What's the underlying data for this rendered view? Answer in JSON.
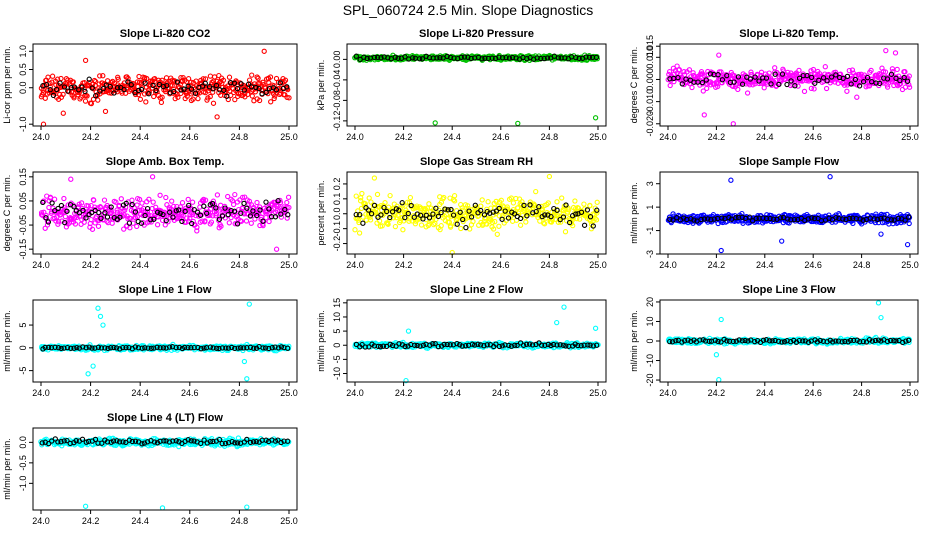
{
  "figure_title": "SPL_060724  2.5 Min. Slope Diagnostics",
  "colors": {
    "co2": "#ff0000",
    "pressure": "#00c000",
    "temperature": "#ff00ff",
    "box_temp": "#ff00ff",
    "rh": "#ffff00",
    "sample_flow": "#0000ff",
    "line_flow": "#00ffff",
    "reference": "#000000"
  },
  "chart_data": [
    {
      "type": "scatter",
      "title": "Slope Li-820 CO2",
      "ylabel": "Li-cor ppm per min.",
      "xlim": [
        24.0,
        25.0
      ],
      "ylim": [
        -1.05,
        1.2
      ],
      "x_ticks": [
        "24.0",
        "24.2",
        "24.4",
        "24.6",
        "24.8",
        "25.0"
      ],
      "y_ticks": [
        {
          "v": -1.0,
          "l": "-1.0"
        },
        {
          "v": 0.0,
          "l": "0.0"
        },
        {
          "v": 0.5,
          "l": "0.5"
        },
        {
          "v": 1.0,
          "l": "1.0"
        }
      ],
      "series": [
        {
          "name": "Li-820 CO2",
          "color": "#ff0000",
          "center": 0.0,
          "spread": 0.35,
          "n": 420,
          "outliers": [
            [
              24.01,
              -1.0
            ],
            [
              24.09,
              -0.7
            ],
            [
              24.18,
              0.75
            ],
            [
              24.26,
              -0.65
            ],
            [
              24.71,
              -0.8
            ],
            [
              24.9,
              1.0
            ]
          ]
        },
        {
          "name": "reference",
          "color": "#000000",
          "center": 0.0,
          "spread": 0.2,
          "n": 70,
          "outliers": []
        }
      ]
    },
    {
      "type": "scatter",
      "title": "Slope Li-820 Pressure",
      "ylabel": "kPa per min.",
      "xlim": [
        24.0,
        25.0
      ],
      "ylim": [
        -0.13,
        0.03
      ],
      "x_ticks": [
        "24.0",
        "24.2",
        "24.4",
        "24.6",
        "24.8",
        "25.0"
      ],
      "y_ticks": [
        {
          "v": -0.12,
          "l": "-0.12"
        },
        {
          "v": -0.08,
          "l": "-0.08"
        },
        {
          "v": -0.04,
          "l": "-0.04"
        },
        {
          "v": 0.0,
          "l": "0.00"
        }
      ],
      "series": [
        {
          "name": "Li-820 Pressure",
          "color": "#00c000",
          "center": 0.003,
          "spread": 0.004,
          "n": 420,
          "outliers": [
            [
              24.33,
              -0.124
            ],
            [
              24.67,
              -0.125
            ],
            [
              24.99,
              -0.114
            ]
          ]
        },
        {
          "name": "reference",
          "color": "#000000",
          "center": 0.003,
          "spread": 0.003,
          "n": 70,
          "outliers": []
        }
      ]
    },
    {
      "type": "scatter",
      "title": "Slope Li-820 Temp.",
      "ylabel": "degrees C per min.",
      "xlim": [
        24.0,
        25.0
      ],
      "ylim": [
        -0.021,
        0.016
      ],
      "x_ticks": [
        "24.0",
        "24.2",
        "24.4",
        "24.6",
        "24.8",
        "25.0"
      ],
      "y_ticks": [
        {
          "v": -0.02,
          "l": "-0.020"
        },
        {
          "v": -0.01,
          "l": "-0.010"
        },
        {
          "v": 0.0,
          "l": "0.000"
        },
        {
          "v": 0.01,
          "l": "0.010"
        },
        {
          "v": 0.015,
          "l": "0.015"
        }
      ],
      "series": [
        {
          "name": "Li-820 Temp.",
          "color": "#ff00ff",
          "center": 0.0,
          "spread": 0.004,
          "n": 420,
          "outliers": [
            [
              24.15,
              -0.016
            ],
            [
              24.27,
              -0.02
            ],
            [
              24.21,
              0.011
            ],
            [
              24.9,
              0.013
            ],
            [
              24.94,
              0.012
            ],
            [
              24.78,
              -0.008
            ]
          ]
        },
        {
          "name": "reference",
          "color": "#000000",
          "center": 0.0,
          "spread": 0.003,
          "n": 60,
          "outliers": []
        }
      ]
    },
    {
      "type": "scatter",
      "title": "Slope Amb. Box Temp.",
      "ylabel": "degrees C per min.",
      "xlim": [
        24.0,
        25.0
      ],
      "ylim": [
        -0.17,
        0.17
      ],
      "x_ticks": [
        "24.0",
        "24.2",
        "24.4",
        "24.6",
        "24.8",
        "25.0"
      ],
      "y_ticks": [
        {
          "v": -0.15,
          "l": "-0.15"
        },
        {
          "v": -0.05,
          "l": "-0.05"
        },
        {
          "v": 0.05,
          "l": "0.05"
        },
        {
          "v": 0.15,
          "l": "0.15"
        }
      ],
      "series": [
        {
          "name": "Amb. Box Temp.",
          "color": "#ff00ff",
          "center": 0.0,
          "spread": 0.06,
          "n": 420,
          "outliers": [
            [
              24.12,
              0.14
            ],
            [
              24.45,
              0.15
            ],
            [
              24.95,
              -0.15
            ]
          ]
        },
        {
          "name": "reference",
          "color": "#000000",
          "center": 0.0,
          "spread": 0.05,
          "n": 80,
          "outliers": []
        }
      ]
    },
    {
      "type": "scatter",
      "title": "Slope Gas Stream RH",
      "ylabel": "percent per min.",
      "xlim": [
        24.0,
        25.0
      ],
      "ylim": [
        -0.27,
        0.28
      ],
      "x_ticks": [
        "24.0",
        "24.2",
        "24.4",
        "24.6",
        "24.8",
        "25.0"
      ],
      "y_ticks": [
        {
          "v": -0.2,
          "l": "-0.2"
        },
        {
          "v": -0.1,
          "l": "-0.1"
        },
        {
          "v": 0.0,
          "l": "0.0"
        },
        {
          "v": 0.1,
          "l": "0.1"
        },
        {
          "v": 0.2,
          "l": "0.2"
        }
      ],
      "series": [
        {
          "name": "Gas Stream RH",
          "color": "#ffff00",
          "center": 0.0,
          "spread": 0.1,
          "n": 420,
          "outliers": [
            [
              24.08,
              0.24
            ],
            [
              24.4,
              -0.26
            ],
            [
              24.8,
              0.25
            ]
          ]
        },
        {
          "name": "reference",
          "color": "#000000",
          "center": 0.0,
          "spread": 0.07,
          "n": 80,
          "outliers": []
        }
      ]
    },
    {
      "type": "scatter",
      "title": "Slope Sample Flow",
      "ylabel": "ml/min per min.",
      "xlim": [
        24.0,
        25.0
      ],
      "ylim": [
        -3.0,
        4.0
      ],
      "x_ticks": [
        "24.0",
        "24.2",
        "24.4",
        "24.6",
        "24.8",
        "25.0"
      ],
      "y_ticks": [
        {
          "v": -3,
          "l": "-3"
        },
        {
          "v": -1,
          "l": "-1"
        },
        {
          "v": 1,
          "l": "1"
        },
        {
          "v": 3,
          "l": "3"
        }
      ],
      "series": [
        {
          "name": "Sample Flow",
          "color": "#0000ff",
          "center": 0.0,
          "spread": 0.4,
          "n": 420,
          "outliers": [
            [
              24.22,
              -2.7
            ],
            [
              24.26,
              3.3
            ],
            [
              24.67,
              3.6
            ],
            [
              24.47,
              -1.9
            ],
            [
              24.99,
              -2.2
            ],
            [
              24.88,
              -1.3
            ]
          ]
        },
        {
          "name": "reference",
          "color": "#000000",
          "center": 0.0,
          "spread": 0.15,
          "n": 70,
          "outliers": []
        }
      ]
    },
    {
      "type": "scatter",
      "title": "Slope Line 1 Flow",
      "ylabel": "ml/min per min.",
      "xlim": [
        24.0,
        25.0
      ],
      "ylim": [
        -7.5,
        10.5
      ],
      "x_ticks": [
        "24.0",
        "24.2",
        "24.4",
        "24.6",
        "24.8",
        "25.0"
      ],
      "y_ticks": [
        {
          "v": -5,
          "l": "-5"
        },
        {
          "v": 0,
          "l": "0"
        },
        {
          "v": 5,
          "l": "5"
        }
      ],
      "series": [
        {
          "name": "Line 1 Flow",
          "color": "#00ffff",
          "center": 0.0,
          "spread": 0.5,
          "n": 420,
          "outliers": [
            [
              24.23,
              8.7
            ],
            [
              24.24,
              6.9
            ],
            [
              24.19,
              -5.7
            ],
            [
              24.21,
              -4.0
            ],
            [
              24.84,
              9.6
            ],
            [
              24.83,
              -6.8
            ],
            [
              24.82,
              -3.0
            ],
            [
              24.25,
              5.0
            ]
          ]
        },
        {
          "name": "reference",
          "color": "#000000",
          "center": 0.0,
          "spread": 0.2,
          "n": 80,
          "outliers": []
        }
      ]
    },
    {
      "type": "scatter",
      "title": "Slope Line 2 Flow",
      "ylabel": "ml/min per min.",
      "xlim": [
        24.0,
        25.0
      ],
      "ylim": [
        -13,
        16
      ],
      "x_ticks": [
        "24.0",
        "24.2",
        "24.4",
        "24.6",
        "24.8",
        "25.0"
      ],
      "y_ticks": [
        {
          "v": -10,
          "l": "-10"
        },
        {
          "v": -5,
          "l": "-5"
        },
        {
          "v": 0,
          "l": "0"
        },
        {
          "v": 5,
          "l": "5"
        },
        {
          "v": 10,
          "l": "10"
        },
        {
          "v": 15,
          "l": "15"
        }
      ],
      "series": [
        {
          "name": "Line 2 Flow",
          "color": "#00ffff",
          "center": 0.0,
          "spread": 0.8,
          "n": 420,
          "outliers": [
            [
              24.21,
              -12.5
            ],
            [
              24.22,
              5.0
            ],
            [
              24.83,
              8.0
            ],
            [
              24.86,
              13.5
            ],
            [
              24.99,
              6.0
            ]
          ]
        },
        {
          "name": "reference",
          "color": "#000000",
          "center": 0.0,
          "spread": 0.6,
          "n": 80,
          "outliers": []
        }
      ]
    },
    {
      "type": "scatter",
      "title": "Slope Line 3 Flow",
      "ylabel": "ml/min per min.",
      "xlim": [
        24.0,
        25.0
      ],
      "ylim": [
        -21,
        21
      ],
      "x_ticks": [
        "24.0",
        "24.2",
        "24.4",
        "24.6",
        "24.8",
        "25.0"
      ],
      "y_ticks": [
        {
          "v": -20,
          "l": "-20"
        },
        {
          "v": -10,
          "l": "-10"
        },
        {
          "v": 0,
          "l": "0"
        },
        {
          "v": 10,
          "l": "10"
        },
        {
          "v": 20,
          "l": "20"
        }
      ],
      "series": [
        {
          "name": "Line 3 Flow",
          "color": "#00ffff",
          "center": 0.0,
          "spread": 1.2,
          "n": 420,
          "outliers": [
            [
              24.21,
              -19.8
            ],
            [
              24.22,
              11.0
            ],
            [
              24.87,
              19.5
            ],
            [
              24.88,
              12.0
            ],
            [
              24.2,
              -7.0
            ]
          ]
        },
        {
          "name": "reference",
          "color": "#000000",
          "center": 0.0,
          "spread": 0.7,
          "n": 80,
          "outliers": []
        }
      ]
    },
    {
      "type": "scatter",
      "title": "Slope Line 4 (LT) Flow",
      "ylabel": "ml/min per min.",
      "xlim": [
        24.0,
        25.0
      ],
      "ylim": [
        -1.65,
        0.35
      ],
      "x_ticks": [
        "24.0",
        "24.2",
        "24.4",
        "24.6",
        "24.8",
        "25.0"
      ],
      "y_ticks": [
        {
          "v": -1.0,
          "l": "-1.0"
        },
        {
          "v": -0.5,
          "l": "-0.5"
        },
        {
          "v": 0.0,
          "l": "0.0"
        }
      ],
      "series": [
        {
          "name": "Line 4 (LT) Flow",
          "color": "#00ffff",
          "center": 0.0,
          "spread": 0.08,
          "n": 420,
          "outliers": [
            [
              24.18,
              -1.56
            ],
            [
              24.49,
              -1.6
            ],
            [
              24.83,
              -1.58
            ]
          ]
        },
        {
          "name": "reference",
          "color": "#000000",
          "center": 0.02,
          "spread": 0.06,
          "n": 80,
          "outliers": []
        }
      ]
    }
  ]
}
